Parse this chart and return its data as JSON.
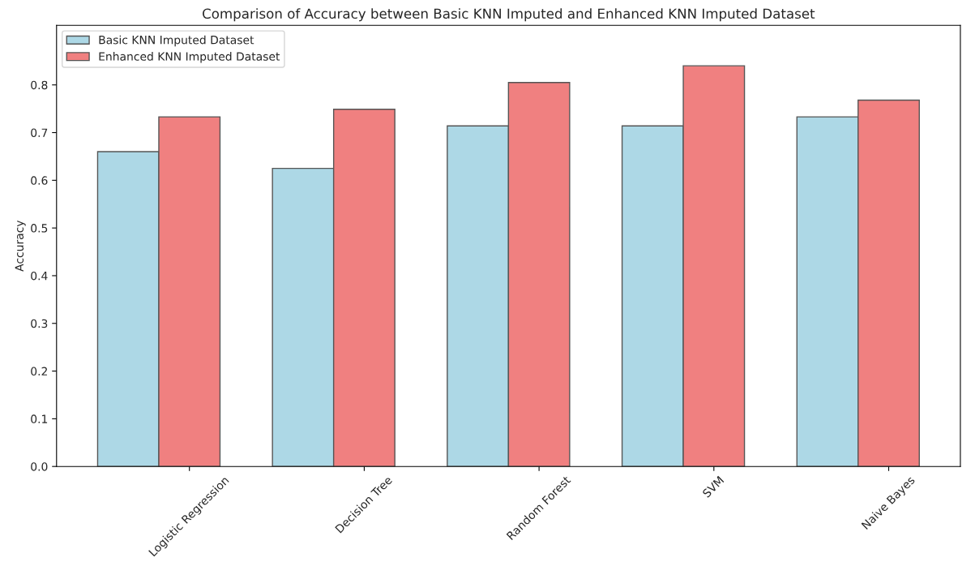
{
  "chart_data": {
    "type": "bar",
    "title": "Comparison of Accuracy between Basic KNN Imputed and Enhanced KNN Imputed Dataset",
    "ylabel": "Accuracy",
    "categories": [
      "Logistic Regression",
      "Decision Tree",
      "Random Forest",
      "SVM",
      "Naive Bayes"
    ],
    "series": [
      {
        "name": "Basic KNN Imputed Dataset",
        "color": "#add8e6",
        "values": [
          0.66,
          0.625,
          0.714,
          0.714,
          0.733
        ]
      },
      {
        "name": "Enhanced KNN Imputed Dataset",
        "color": "#f08080",
        "values": [
          0.733,
          0.749,
          0.805,
          0.84,
          0.768
        ]
      }
    ],
    "ylim": [
      0,
      0.925
    ],
    "yticks": [
      {
        "value": 0,
        "label": "0.0"
      },
      0.1,
      0.2,
      0.3,
      0.4,
      0.5,
      0.6,
      0.7,
      0.8
    ],
    "legend": "top left"
  }
}
